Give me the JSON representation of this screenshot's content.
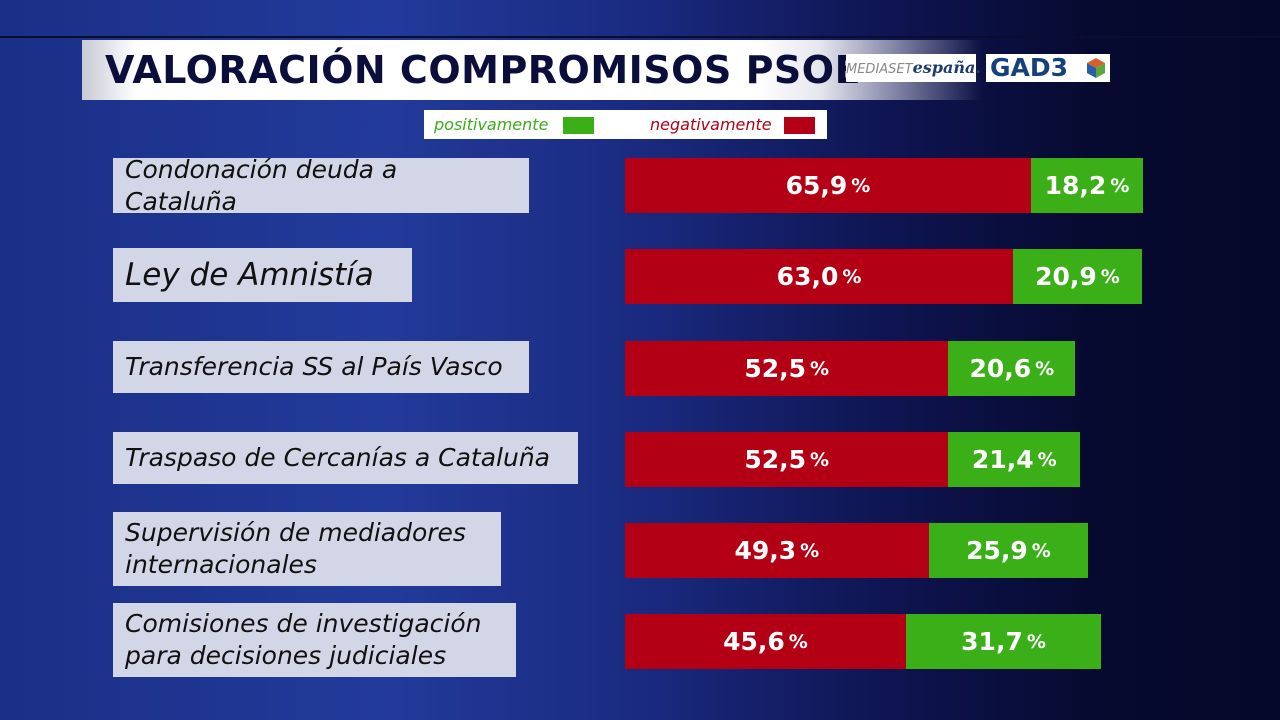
{
  "header": {
    "title": "VALORACIÓN COMPROMISOS PSOE",
    "logo_mediaset": "MEDIASETespaña.",
    "logo_gad3": "GAD3"
  },
  "colors": {
    "positive": "#3aaf18",
    "negative": "#b30015"
  },
  "chart_data": {
    "type": "bar",
    "orientation": "horizontal",
    "stacked": true,
    "title": "VALORACIÓN COMPROMISOS PSOE",
    "legend": {
      "position": "top",
      "entries": [
        "positivamente",
        "negativamente"
      ]
    },
    "unit": "%",
    "categories": [
      "Condonación deuda a Cataluña",
      "Ley de Amnistía",
      "Transferencia SS al País Vasco",
      "Traspaso de Cercanías a Cataluña",
      "Supervisión de mediadores internacionales",
      "Comisiones de investigación para decisiones judiciales"
    ],
    "series": [
      {
        "name": "negativamente",
        "values": [
          65.9,
          63.0,
          52.5,
          52.5,
          49.3,
          45.6
        ],
        "labels": [
          "65,9",
          "63,0",
          "52,5",
          "52,5",
          "49,3",
          "45,6"
        ]
      },
      {
        "name": "positivamente",
        "values": [
          18.2,
          20.9,
          20.6,
          21.4,
          25.9,
          31.7
        ],
        "labels": [
          "18,2",
          "20,9",
          "20,6",
          "21,4",
          "25,9",
          "31,7"
        ]
      }
    ]
  }
}
